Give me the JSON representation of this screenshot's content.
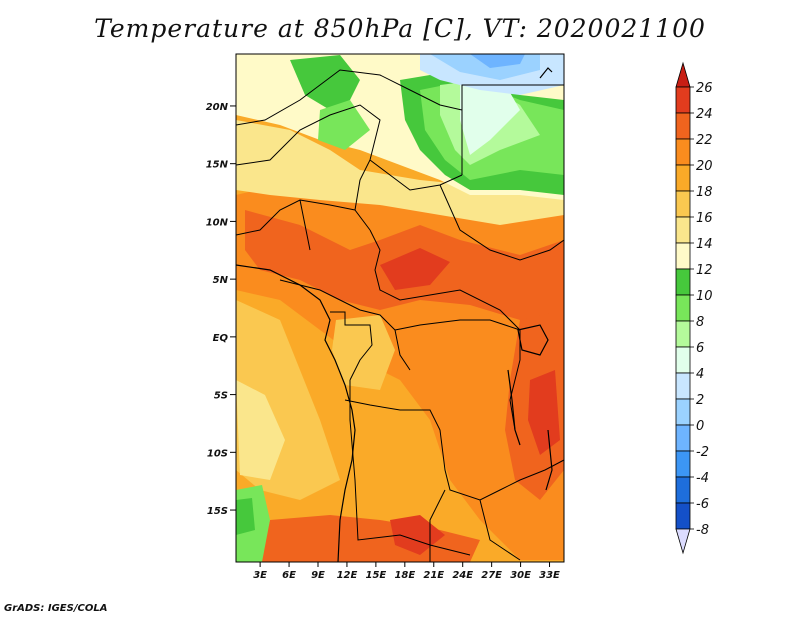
{
  "title": "Temperature at 850hPa [C], VT: 2020021100",
  "credit": "GrADS: IGES/COLA",
  "map": {
    "lat_range": [
      -19.5,
      24.5
    ],
    "lon_range": [
      0.5,
      34.5
    ],
    "lat_ticks": [
      {
        "label": "20N",
        "value": 20
      },
      {
        "label": "15N",
        "value": 15
      },
      {
        "label": "10N",
        "value": 10
      },
      {
        "label": "5N",
        "value": 5
      },
      {
        "label": "EQ",
        "value": 0
      },
      {
        "label": "5S",
        "value": -5
      },
      {
        "label": "10S",
        "value": -10
      },
      {
        "label": "15S",
        "value": -15
      }
    ],
    "lon_ticks": [
      {
        "label": "3E",
        "value": 3
      },
      {
        "label": "6E",
        "value": 6
      },
      {
        "label": "9E",
        "value": 9
      },
      {
        "label": "12E",
        "value": 12
      },
      {
        "label": "15E",
        "value": 15
      },
      {
        "label": "18E",
        "value": 18
      },
      {
        "label": "21E",
        "value": 21
      },
      {
        "label": "24E",
        "value": 24
      },
      {
        "label": "27E",
        "value": 27
      },
      {
        "label": "30E",
        "value": 30
      },
      {
        "label": "33E",
        "value": 33
      }
    ]
  },
  "colorbar": {
    "labels": [
      "26",
      "24",
      "22",
      "20",
      "18",
      "16",
      "14",
      "12",
      "10",
      "8",
      "6",
      "4",
      "2",
      "0",
      "-2",
      "-4",
      "-6",
      "-8"
    ],
    "colors": [
      "#e23c1e",
      "#f0641e",
      "#fa8c1e",
      "#faaa28",
      "#fac850",
      "#fae68c",
      "#fffac8",
      "#46c83c",
      "#78e65a",
      "#b4fa9b",
      "#e1ffeb",
      "#c8e6ff",
      "#9bd2ff",
      "#6eb4ff",
      "#3c96f5",
      "#1e6edc",
      "#1450c8",
      "#0a32b4",
      "#0a1e78"
    ],
    "top_color": "#c81e14",
    "bottom_color": "#dcdcff"
  }
}
